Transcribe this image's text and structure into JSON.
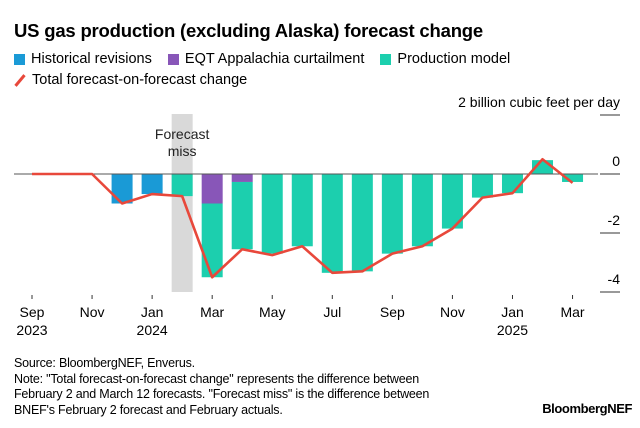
{
  "chart_data": {
    "type": "bar",
    "title": "US gas production (excluding Alaska) forecast change",
    "ylabel": "billion cubic feet per day",
    "ylim": [
      -4,
      2
    ],
    "yticks": [
      2,
      0,
      -2,
      -4
    ],
    "ytick_labels": [
      "2 billion cubic feet per day",
      "0",
      "-2",
      "-4"
    ],
    "stacked": true,
    "categories": [
      "Sep 2023",
      "Oct 2023",
      "Nov 2023",
      "Dec 2023",
      "Jan 2024",
      "Feb 2024",
      "Mar 2024",
      "Apr 2024",
      "May 2024",
      "Jun 2024",
      "Jul 2024",
      "Aug 2024",
      "Sep 2024",
      "Oct 2024",
      "Nov 2024",
      "Dec 2024",
      "Jan 2025",
      "Feb 2025",
      "Mar 2025"
    ],
    "xtick_labels": [
      {
        "index": 0,
        "line1": "Sep",
        "line2": "2023"
      },
      {
        "index": 2,
        "line1": "Nov",
        "line2": ""
      },
      {
        "index": 4,
        "line1": "Jan",
        "line2": "2024"
      },
      {
        "index": 6,
        "line1": "Mar",
        "line2": ""
      },
      {
        "index": 8,
        "line1": "May",
        "line2": ""
      },
      {
        "index": 10,
        "line1": "Jul",
        "line2": ""
      },
      {
        "index": 12,
        "line1": "Sep",
        "line2": ""
      },
      {
        "index": 14,
        "line1": "Nov",
        "line2": ""
      },
      {
        "index": 16,
        "line1": "Jan",
        "line2": "2025"
      },
      {
        "index": 18,
        "line1": "Mar",
        "line2": ""
      }
    ],
    "series": [
      {
        "name": "Historical revisions",
        "type": "bar",
        "color": "#1a9ad6",
        "values": [
          0,
          0,
          0,
          -1.0,
          -0.68,
          0,
          0,
          0,
          0,
          0,
          0,
          0,
          0,
          0,
          0,
          0,
          0,
          0,
          0
        ]
      },
      {
        "name": "EQT Appalachia curtailment",
        "type": "bar",
        "color": "#8856b8",
        "values": [
          0,
          0,
          0,
          0,
          0,
          0,
          -1.0,
          -0.27,
          0,
          0,
          0,
          0,
          0,
          0,
          0,
          0,
          0,
          0,
          0
        ]
      },
      {
        "name": "Production model",
        "type": "bar",
        "color": "#1ccfae",
        "values": [
          0,
          0,
          0,
          0,
          0,
          -0.75,
          -2.5,
          -2.28,
          -2.7,
          -2.45,
          -3.35,
          -3.3,
          -2.7,
          -2.45,
          -1.85,
          -0.8,
          -0.65,
          0.47,
          -0.27
        ]
      },
      {
        "name": "Total forecast-on-forecast change",
        "type": "line",
        "color": "#e8483b",
        "values": [
          0,
          0,
          0,
          -1.0,
          -0.68,
          -0.75,
          -3.5,
          -2.55,
          -2.75,
          -2.45,
          -3.35,
          -3.3,
          -2.7,
          -2.45,
          -1.85,
          -0.8,
          -0.65,
          0.5,
          -0.3
        ]
      }
    ],
    "annotations": [
      {
        "text_line1": "Forecast",
        "text_line2": "miss",
        "category": "Feb 2024",
        "shade_color": "#d9d9d9"
      }
    ],
    "legend_position": "top-left",
    "grid": false
  },
  "footer": {
    "source": "Source: BloombergNEF, Enverus.",
    "note_lines": [
      "Note: \"Total forecast-on-forecast change\" represents the difference between",
      "February 2 and March 12 forecasts. \"Forecast miss\" is the difference between",
      "BNEF's February 2 forecast and February actuals."
    ],
    "brand": "BloombergNEF"
  }
}
